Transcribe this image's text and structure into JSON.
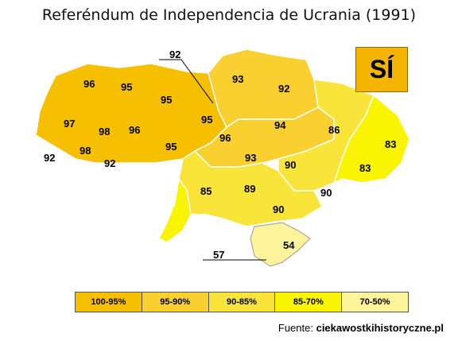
{
  "title": "Referéndum de Independencia de Ucrania (1991)",
  "badge": "SÍ",
  "colors": {
    "c100_95": "#f6c000",
    "c95_90": "#f9d030",
    "c90_85": "#f9e43a",
    "c85_70": "#f9f500",
    "c70_50": "#fcf39a",
    "border": "#ffffff"
  },
  "regions": [
    {
      "value": "96"
    },
    {
      "value": "95"
    },
    {
      "value": "95"
    },
    {
      "value": "93"
    },
    {
      "value": "92"
    },
    {
      "value": "97"
    },
    {
      "value": "98"
    },
    {
      "value": "96"
    },
    {
      "value": "95"
    },
    {
      "value": "94"
    },
    {
      "value": "86"
    },
    {
      "value": "83"
    },
    {
      "value": "92"
    },
    {
      "value": "98"
    },
    {
      "value": "92"
    },
    {
      "value": "95"
    },
    {
      "value": "96"
    },
    {
      "value": "93"
    },
    {
      "value": "90"
    },
    {
      "value": "83"
    },
    {
      "value": "85"
    },
    {
      "value": "89"
    },
    {
      "value": "90"
    },
    {
      "value": "90"
    },
    {
      "value": "54"
    },
    {
      "value": "92"
    },
    {
      "value": "57"
    }
  ],
  "legend": [
    {
      "label": "100-95%",
      "color": "#f6c000"
    },
    {
      "label": "95-90%",
      "color": "#f9d030"
    },
    {
      "label": "90-85%",
      "color": "#f9e43a"
    },
    {
      "label": "85-70%",
      "color": "#f9f500"
    },
    {
      "label": "70-50%",
      "color": "#fcf39a"
    }
  ],
  "source": {
    "prefix": "Fuente: ",
    "site": "ciekawostkihistoryczne.pl"
  }
}
